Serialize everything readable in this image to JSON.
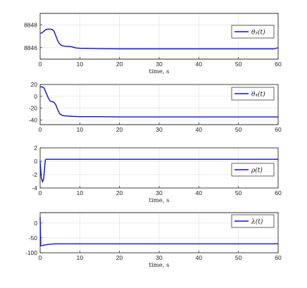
{
  "chart_data": [
    {
      "type": "line",
      "xlabel": "time, s",
      "xlim": [
        0,
        60
      ],
      "ylim": [
        8845,
        8849
      ],
      "xticks": [
        "0",
        "10",
        "20",
        "30",
        "40",
        "50",
        "60"
      ],
      "yticks": [
        "8846",
        "8848"
      ],
      "grid": true,
      "legend_position": "top-right",
      "series": [
        {
          "name": "θ₃(t)",
          "color": "#0c10d6",
          "x": [
            0,
            0.5,
            1,
            1.5,
            2,
            2.5,
            3,
            3.5,
            4,
            4.5,
            5,
            5.5,
            6,
            7,
            8,
            9,
            10,
            15,
            20,
            30,
            40,
            50,
            59,
            60
          ],
          "y": [
            8847.25,
            8847.3,
            8847.45,
            8847.6,
            8847.62,
            8847.62,
            8847.6,
            8847.45,
            8847.0,
            8846.55,
            8846.3,
            8846.18,
            8846.14,
            8846.12,
            8846.08,
            8845.98,
            8845.95,
            8845.92,
            8845.9,
            8845.9,
            8845.9,
            8845.9,
            8845.9,
            8846.0
          ]
        }
      ]
    },
    {
      "type": "line",
      "xlabel": "",
      "xlim": [
        0,
        60
      ],
      "ylim": [
        -48,
        20
      ],
      "xticks": [
        "0",
        "10",
        "20",
        "30",
        "40",
        "50",
        "60"
      ],
      "yticks": [
        "20",
        "0",
        "-20",
        "-40"
      ],
      "grid": true,
      "legend_position": "top-right",
      "series": [
        {
          "name": "θ₄(t)",
          "color": "#0c10d6",
          "x": [
            0,
            0.5,
            1,
            1.5,
            2,
            2.5,
            3,
            3.5,
            4,
            4.5,
            5,
            5.5,
            6,
            7,
            8,
            10,
            15,
            20,
            30,
            40,
            50,
            60
          ],
          "y": [
            16,
            16,
            14,
            6,
            -2,
            -8,
            -9,
            -10,
            -15,
            -24,
            -30,
            -32,
            -33,
            -33.5,
            -34,
            -34.5,
            -34.5,
            -35,
            -35,
            -35,
            -35,
            -35
          ]
        }
      ]
    },
    {
      "type": "line",
      "xlabel": "time, s",
      "xlim": [
        0,
        60
      ],
      "ylim": [
        -4,
        2
      ],
      "xticks": [
        "0",
        "10",
        "20",
        "30",
        "40",
        "50",
        "60"
      ],
      "yticks": [
        "2",
        "0",
        "-2",
        "-4"
      ],
      "grid": true,
      "legend_position": "center-right",
      "series": [
        {
          "name": "ρ(t)",
          "color": "#0c10d6",
          "x": [
            0,
            0.3,
            0.6,
            0.9,
            1.1,
            1.3,
            1.5,
            1.7,
            2,
            3,
            10,
            20,
            30,
            40,
            50,
            60
          ],
          "y": [
            0,
            -2.5,
            -3.1,
            -2.6,
            -1.2,
            0.2,
            0.3,
            0.3,
            0.3,
            0.3,
            0.3,
            0.3,
            0.3,
            0.3,
            0.3,
            0.3
          ]
        }
      ]
    },
    {
      "type": "line",
      "xlabel": "time, s",
      "xlim": [
        0,
        60
      ],
      "ylim": [
        -100,
        35
      ],
      "xticks": [
        "0",
        "10",
        "20",
        "30",
        "40",
        "50",
        "60"
      ],
      "yticks": [
        "0",
        "-50",
        "-100"
      ],
      "grid": true,
      "legend_position": "top-right",
      "series": [
        {
          "name": "λ(t)",
          "color": "#0c10d6",
          "x": [
            0,
            0.15,
            0.4,
            1,
            2,
            3,
            4,
            5,
            6,
            8,
            10,
            20,
            30,
            40,
            50,
            60
          ],
          "y": [
            20,
            -76,
            -76,
            -74,
            -72,
            -70.5,
            -70,
            -70,
            -70,
            -70,
            -70,
            -70,
            -70,
            -70,
            -70,
            -70
          ]
        }
      ]
    }
  ]
}
